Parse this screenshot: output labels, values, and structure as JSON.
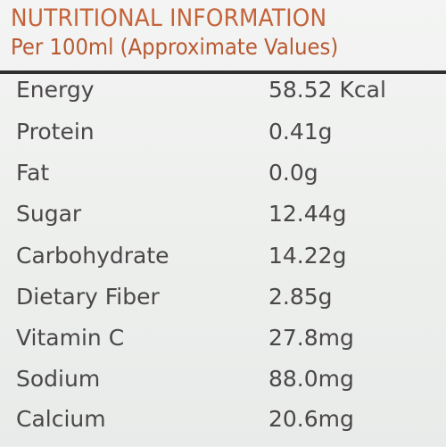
{
  "label": {
    "title": "NUTRITIONAL INFORMATION",
    "subtitle": "Per 100ml (Approximate Values)"
  },
  "nutrition": [
    {
      "name": "Energy",
      "value": "58.52 Kcal"
    },
    {
      "name": "Protein",
      "value": "0.41g"
    },
    {
      "name": "Fat",
      "value": "0.0g"
    },
    {
      "name": "Sugar",
      "value": "12.44g"
    },
    {
      "name": "Carbohydrate",
      "value": "14.22g"
    },
    {
      "name": "Dietary Fiber",
      "value": "2.85g"
    },
    {
      "name": "Vitamin C",
      "value": "27.8mg"
    },
    {
      "name": "Sodium",
      "value": "88.0mg"
    },
    {
      "name": "Calcium",
      "value": "20.6mg"
    }
  ],
  "colors": {
    "title": "#c4633a",
    "body_text": "#4a4748",
    "rule": "#2e2e2e",
    "background": "#eef0ee"
  }
}
